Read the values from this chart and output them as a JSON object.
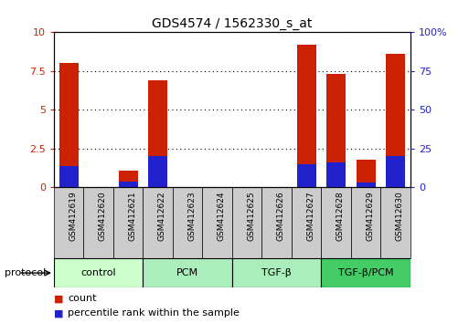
{
  "title": "GDS4574 / 1562330_s_at",
  "samples": [
    "GSM412619",
    "GSM412620",
    "GSM412621",
    "GSM412622",
    "GSM412623",
    "GSM412624",
    "GSM412625",
    "GSM412626",
    "GSM412627",
    "GSM412628",
    "GSM412629",
    "GSM412630"
  ],
  "count_values": [
    8.0,
    0.0,
    1.1,
    6.9,
    0.0,
    0.0,
    0.0,
    0.0,
    9.2,
    7.3,
    1.8,
    8.6
  ],
  "percentile_values": [
    14.0,
    0.0,
    4.0,
    20.0,
    0.0,
    0.0,
    0.0,
    0.0,
    15.0,
    16.0,
    3.0,
    20.0
  ],
  "ylim_left": [
    0,
    10
  ],
  "ylim_right": [
    0,
    100
  ],
  "yticks_left": [
    0,
    2.5,
    5,
    7.5,
    10
  ],
  "yticks_right": [
    0,
    25,
    50,
    75,
    100
  ],
  "groups": [
    {
      "label": "control",
      "start": 0,
      "end": 3,
      "color": "#ccffcc"
    },
    {
      "label": "PCM",
      "start": 3,
      "end": 6,
      "color": "#aaeebb"
    },
    {
      "label": "TGF-β",
      "start": 6,
      "end": 9,
      "color": "#aaeebb"
    },
    {
      "label": "TGF-β/PCM",
      "start": 9,
      "end": 12,
      "color": "#44cc66"
    }
  ],
  "bar_color": "#cc2200",
  "percentile_color": "#2222cc",
  "bar_width": 0.65,
  "bg_color": "#ffffff",
  "sample_box_color": "#cccccc",
  "ylabel_left_color": "#cc2200",
  "ylabel_right_color": "#2222cc",
  "protocol_label": "protocol",
  "legend_count": "count",
  "legend_percentile": "percentile rank within the sample",
  "title_fontsize": 10,
  "tick_fontsize": 8,
  "legend_fontsize": 8,
  "sample_fontsize": 6.5,
  "group_fontsize": 8
}
